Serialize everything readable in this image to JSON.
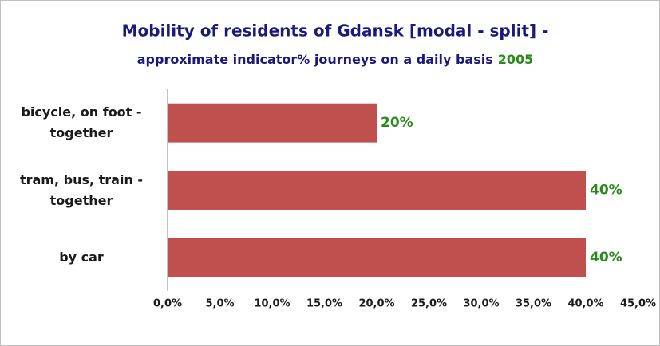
{
  "chart_data": {
    "type": "hbar",
    "title": "Mobility of residents of Gdansk [modal - split] -",
    "subtitle": "approximate indicator% journeys on a daily basis",
    "year": "2005",
    "categories": [
      "bicycle, on foot - together",
      "tram, bus, train - together",
      "by car"
    ],
    "values": [
      20,
      40,
      40
    ],
    "value_labels": [
      "20%",
      "40%",
      "40%"
    ],
    "color": "#c0504d",
    "label_color": "#2a8a1e",
    "xlim": [
      0,
      45
    ],
    "xticks": [
      {
        "value": 0,
        "label": "0,0%"
      },
      {
        "value": 5,
        "label": "5,0%"
      },
      {
        "value": 10,
        "label": "10,0%"
      },
      {
        "value": 15,
        "label": "15,0%"
      },
      {
        "value": 20,
        "label": "20,0%"
      },
      {
        "value": 25,
        "label": "25,0%"
      },
      {
        "value": 30,
        "label": "30,0%"
      },
      {
        "value": 35,
        "label": "35,0%"
      },
      {
        "value": 40,
        "label": "40,0%"
      },
      {
        "value": 45,
        "label": "45,0%"
      }
    ],
    "grid": false
  }
}
